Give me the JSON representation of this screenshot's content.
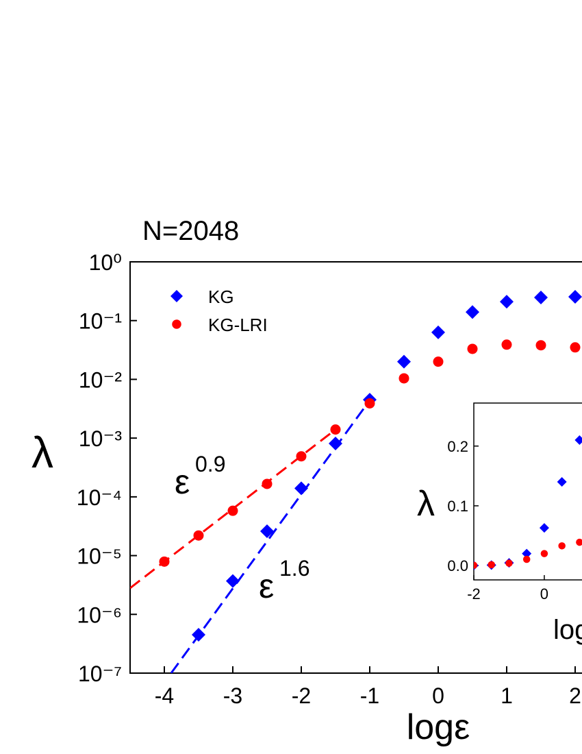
{
  "chart_data": {
    "type": "scatter",
    "title": "N=2048",
    "xlabel": "logε",
    "ylabel": "λ",
    "x": [
      -4,
      -3.5,
      -3,
      -2.5,
      -2,
      -1.5,
      -1,
      -0.5,
      0,
      0.5,
      1,
      1.5,
      2
    ],
    "xlim": [
      -4.5,
      2.1
    ],
    "ylim": [
      1e-07,
      1
    ],
    "yscale": "log",
    "xticks": [
      -4,
      -3,
      -2,
      -1,
      0,
      1,
      2
    ],
    "yticks": [
      {
        "value": 1e-07,
        "label": "10⁻⁷"
      },
      {
        "value": 1e-06,
        "label": "10⁻⁶"
      },
      {
        "value": 1e-05,
        "label": "10⁻⁵"
      },
      {
        "value": 0.0001,
        "label": "10⁻⁴"
      },
      {
        "value": 0.001,
        "label": "10⁻³"
      },
      {
        "value": 0.01,
        "label": "10⁻²"
      },
      {
        "value": 0.1,
        "label": "10⁻¹"
      },
      {
        "value": 1,
        "label": "10⁰"
      }
    ],
    "legend": "upper left",
    "series": [
      {
        "name": "KG",
        "color": "#0000ff",
        "marker": "diamond",
        "values": [
          null,
          4.5e-07,
          3.7e-06,
          2.6e-05,
          0.00014,
          0.00081,
          0.0045,
          0.02,
          0.063,
          0.14,
          0.21,
          0.247,
          0.254
        ]
      },
      {
        "name": "KG-LRI",
        "color": "#ff0000",
        "marker": "circle",
        "values": [
          7.9e-06,
          2.2e-05,
          5.8e-05,
          0.000166,
          0.00049,
          0.0014,
          0.0039,
          0.0104,
          0.02,
          0.033,
          0.039,
          0.038,
          0.035
        ]
      }
    ],
    "fits": [
      {
        "color": "#ff0000",
        "x": [
          -4.5,
          -1.5
        ],
        "y": [
          2.8e-06,
          0.0014
        ],
        "label": "ε",
        "exponent": "0.9"
      },
      {
        "color": "#0000ff",
        "x": [
          -3.9,
          -1.0
        ],
        "y": [
          1e-07,
          0.0044
        ],
        "label": "ε",
        "exponent": "1.6"
      }
    ],
    "inset": {
      "xlabel": "logε",
      "ylabel": "λ",
      "xlim": [
        -2,
        1.07
      ],
      "ylim": [
        -0.024,
        0.272
      ],
      "xticks": [
        -2,
        0
      ],
      "yticks": [
        {
          "value": 0,
          "label": "0.0"
        },
        0.1,
        0.2
      ]
    }
  }
}
